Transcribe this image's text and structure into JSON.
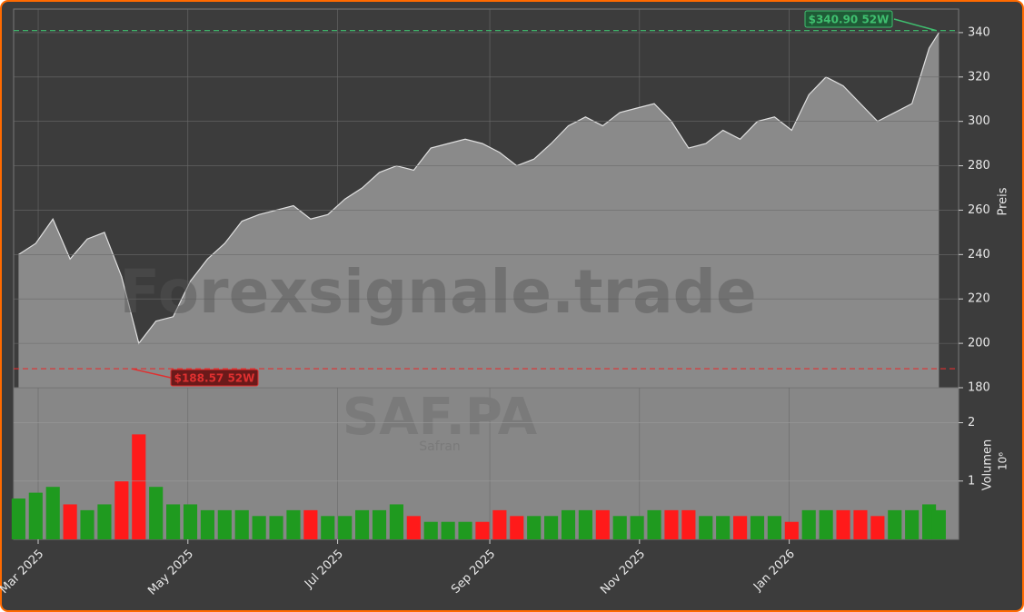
{
  "chart_data": [
    {
      "type": "area",
      "watermark": "Forexsignale.trade",
      "ylabel": "Preis",
      "color": "#8a8a8a",
      "line_color": "#e0e0e0",
      "x": [
        "2025-02-21",
        "2025-02-28",
        "2025-03-07",
        "2025-03-14",
        "2025-03-21",
        "2025-03-28",
        "2025-04-04",
        "2025-04-11",
        "2025-04-18",
        "2025-04-25",
        "2025-05-02",
        "2025-05-09",
        "2025-05-16",
        "2025-05-23",
        "2025-05-30",
        "2025-06-06",
        "2025-06-13",
        "2025-06-20",
        "2025-06-27",
        "2025-07-04",
        "2025-07-11",
        "2025-07-18",
        "2025-07-25",
        "2025-08-01",
        "2025-08-08",
        "2025-08-15",
        "2025-08-22",
        "2025-08-29",
        "2025-09-05",
        "2025-09-12",
        "2025-09-19",
        "2025-09-26",
        "2025-10-03",
        "2025-10-10",
        "2025-10-17",
        "2025-10-24",
        "2025-10-31",
        "2025-11-07",
        "2025-11-14",
        "2025-11-21",
        "2025-11-28",
        "2025-12-05",
        "2025-12-12",
        "2025-12-19",
        "2025-12-26",
        "2026-01-02",
        "2026-01-09",
        "2026-01-16",
        "2026-01-23",
        "2026-01-30",
        "2026-02-06",
        "2026-02-13",
        "2026-02-20",
        "2026-02-27",
        "2026-03-03"
      ],
      "values": [
        240,
        245,
        256,
        238,
        247,
        250,
        230,
        200,
        210,
        212,
        228,
        238,
        245,
        255,
        258,
        260,
        262,
        256,
        258,
        265,
        270,
        277,
        280,
        278,
        288,
        290,
        292,
        290,
        286,
        280,
        283,
        290,
        298,
        302,
        298,
        304,
        306,
        308,
        300,
        288,
        290,
        296,
        292,
        300,
        302,
        296,
        312,
        320,
        316,
        308,
        300,
        304,
        308,
        333,
        340
      ],
      "xlim": [
        "2025-02-19",
        "2026-03-11"
      ],
      "ylim": [
        180,
        350.6
      ],
      "yticks": [
        180,
        200,
        220,
        240,
        260,
        280,
        300,
        320,
        340
      ],
      "grid": true,
      "annotations": [
        {
          "label": "$340.90 52W",
          "value": 340.9,
          "date": "2026-03-02",
          "color": "#3fbf6f"
        },
        {
          "label": "$188.57 52W",
          "value": 188.57,
          "date": "2025-04-08",
          "color": "#e03030"
        }
      ]
    },
    {
      "type": "bar",
      "ticker": "SAF.PA",
      "name": "Safran",
      "ylabel": "Volumen",
      "scale_label": "10⁶",
      "up_color": "#1f9a1f",
      "down_color": "#ff1a1a",
      "x": [
        "2025-02-21",
        "2025-02-28",
        "2025-03-07",
        "2025-03-14",
        "2025-03-21",
        "2025-03-28",
        "2025-04-04",
        "2025-04-11",
        "2025-04-18",
        "2025-04-25",
        "2025-05-02",
        "2025-05-09",
        "2025-05-16",
        "2025-05-23",
        "2025-05-30",
        "2025-06-06",
        "2025-06-13",
        "2025-06-20",
        "2025-06-27",
        "2025-07-04",
        "2025-07-11",
        "2025-07-18",
        "2025-07-25",
        "2025-08-01",
        "2025-08-08",
        "2025-08-15",
        "2025-08-22",
        "2025-08-29",
        "2025-09-05",
        "2025-09-12",
        "2025-09-19",
        "2025-09-26",
        "2025-10-03",
        "2025-10-10",
        "2025-10-17",
        "2025-10-24",
        "2025-10-31",
        "2025-11-07",
        "2025-11-14",
        "2025-11-21",
        "2025-11-28",
        "2025-12-05",
        "2025-12-12",
        "2025-12-19",
        "2025-12-26",
        "2026-01-02",
        "2026-01-09",
        "2026-01-16",
        "2026-01-23",
        "2026-01-30",
        "2026-02-06",
        "2026-02-13",
        "2026-02-20",
        "2026-02-27",
        "2026-03-03"
      ],
      "values": [
        0.7,
        0.8,
        0.9,
        0.6,
        0.5,
        0.6,
        1.0,
        1.8,
        0.9,
        0.6,
        0.6,
        0.5,
        0.5,
        0.5,
        0.4,
        0.4,
        0.5,
        0.5,
        0.4,
        0.4,
        0.5,
        0.5,
        0.6,
        0.4,
        0.3,
        0.3,
        0.3,
        0.3,
        0.5,
        0.4,
        0.4,
        0.4,
        0.5,
        0.5,
        0.5,
        0.4,
        0.4,
        0.5,
        0.5,
        0.5,
        0.4,
        0.4,
        0.4,
        0.4,
        0.4,
        0.3,
        0.5,
        0.5,
        0.5,
        0.5,
        0.4,
        0.5,
        0.5,
        0.6,
        0.5
      ],
      "xlim": [
        "2025-02-19",
        "2026-03-11"
      ],
      "ylim": [
        0,
        2.6
      ],
      "yticks": [
        1,
        2
      ],
      "xticks": [
        {
          "value": "2025-03-01",
          "label": "Mar 2025"
        },
        {
          "value": "2025-05-01",
          "label": "May 2025"
        },
        {
          "value": "2025-07-01",
          "label": "Jul 2025"
        },
        {
          "value": "2025-09-01",
          "label": "Sep 2025"
        },
        {
          "value": "2025-11-01",
          "label": "Nov 2025"
        },
        {
          "value": "2026-01-01",
          "label": "Jan 2026"
        }
      ]
    }
  ]
}
